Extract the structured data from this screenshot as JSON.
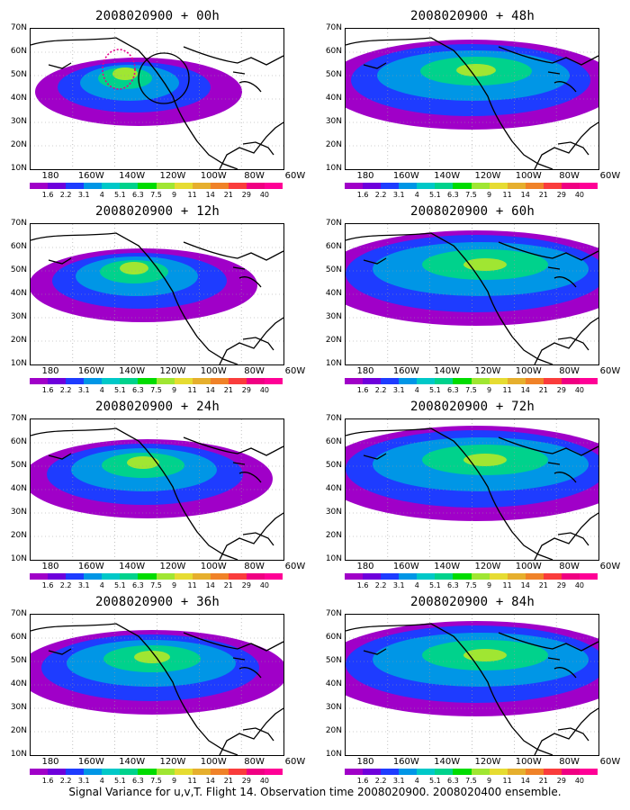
{
  "panels": [
    {
      "title": "2008020900 + 00h",
      "col": 0,
      "row": 0,
      "level": 0
    },
    {
      "title": "2008020900 + 48h",
      "col": 1,
      "row": 0,
      "level": 4
    },
    {
      "title": "2008020900 + 12h",
      "col": 0,
      "row": 1,
      "level": 1
    },
    {
      "title": "2008020900 + 60h",
      "col": 1,
      "row": 1,
      "level": 5
    },
    {
      "title": "2008020900 + 24h",
      "col": 0,
      "row": 2,
      "level": 2
    },
    {
      "title": "2008020900 + 72h",
      "col": 1,
      "row": 2,
      "level": 6
    },
    {
      "title": "2008020900 + 36h",
      "col": 0,
      "row": 3,
      "level": 3
    },
    {
      "title": "2008020900 + 84h",
      "col": 1,
      "row": 3,
      "level": 7
    }
  ],
  "lat_labels": [
    "70N",
    "60N",
    "50N",
    "40N",
    "30N",
    "20N",
    "10N"
  ],
  "lon_labels": [
    "180",
    "160W",
    "140W",
    "120W",
    "100W",
    "80W",
    "60W"
  ],
  "colorbar": {
    "labels": [
      "1.6",
      "2.2",
      "3.1",
      "4",
      "5.1",
      "6.3",
      "7.5",
      "9",
      "11",
      "14",
      "21",
      "29",
      "40"
    ],
    "colors": [
      "#a000c8",
      "#6e00dc",
      "#1e3cff",
      "#0096e6",
      "#00c8c8",
      "#00d28c",
      "#00dc00",
      "#a0e632",
      "#e6dc32",
      "#e6af2d",
      "#f08228",
      "#fa3c3c",
      "#f00082",
      "#ff0096"
    ]
  },
  "caption": "Signal Variance for u,v,T. Flight 14. Observation time 2008020900. 2008020400 ensemble."
}
